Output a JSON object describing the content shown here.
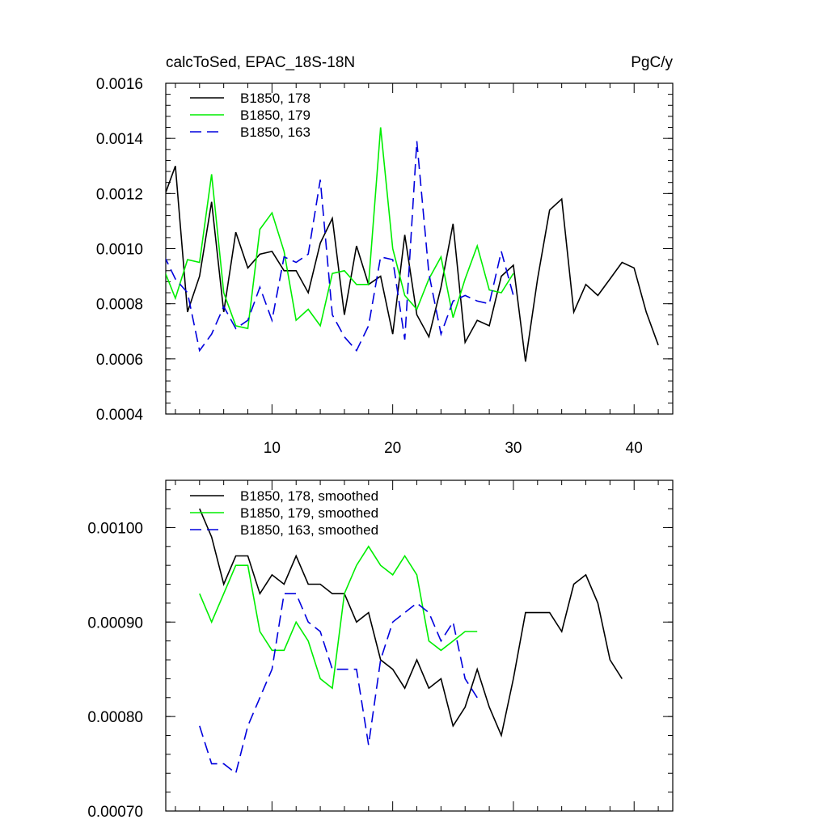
{
  "chart_data": [
    {
      "type": "line",
      "title_left": "calcToSed, EPAC_18S-18N",
      "title_right": "PgC/y",
      "xlabel": "",
      "ylabel": "",
      "xlim": [
        1.2,
        43.2
      ],
      "ylim": [
        0.0004,
        0.0016
      ],
      "x_ticks": [
        10,
        20,
        30,
        40
      ],
      "x_tick_labels": [
        "10",
        "20",
        "30",
        "40"
      ],
      "y_ticks": [
        0.0004,
        0.0006,
        0.0008,
        0.001,
        0.0012,
        0.0014,
        0.0016
      ],
      "y_tick_labels": [
        "0.0004",
        "0.0006",
        "0.0008",
        "0.0010",
        "0.0012",
        "0.0014",
        "0.0016"
      ],
      "grid": false,
      "legend_position": "top-left",
      "series": [
        {
          "name": "B1850, 178",
          "color": "#000000",
          "dash": "solid",
          "x": [
            1,
            2,
            3,
            4,
            5,
            6,
            7,
            8,
            9,
            10,
            11,
            12,
            13,
            14,
            15,
            16,
            17,
            18,
            19,
            20,
            21,
            22,
            23,
            24,
            25,
            26,
            27,
            28,
            29,
            30,
            31,
            32,
            33,
            34,
            35,
            36,
            37,
            38,
            39,
            40,
            41,
            42
          ],
          "y": [
            0.00118,
            0.0013,
            0.00077,
            0.0009,
            0.00117,
            0.00077,
            0.00106,
            0.00093,
            0.00098,
            0.00099,
            0.00092,
            0.00092,
            0.00084,
            0.00102,
            0.00111,
            0.00076,
            0.00101,
            0.00087,
            0.0009,
            0.00069,
            0.00105,
            0.00076,
            0.00068,
            0.00086,
            0.00109,
            0.00066,
            0.00074,
            0.00072,
            0.0009,
            0.00094,
            0.00059,
            0.00089,
            0.00114,
            0.00118,
            0.00077,
            0.00087,
            0.00083,
            0.00089,
            0.00095,
            0.00093,
            0.00077,
            0.00065
          ]
        },
        {
          "name": "B1850, 179",
          "color": "#00ee00",
          "dash": "solid",
          "x": [
            1,
            2,
            3,
            4,
            5,
            6,
            7,
            8,
            9,
            10,
            11,
            12,
            13,
            14,
            15,
            16,
            17,
            18,
            19,
            20,
            21,
            22,
            23,
            24,
            25,
            26,
            27,
            28,
            29,
            30
          ],
          "y": [
            0.00093,
            0.00082,
            0.00096,
            0.00095,
            0.00127,
            0.00084,
            0.00072,
            0.00071,
            0.00107,
            0.00113,
            0.00099,
            0.00074,
            0.00078,
            0.00072,
            0.00091,
            0.00092,
            0.00087,
            0.00087,
            0.00144,
            0.001,
            0.00083,
            0.00078,
            0.00089,
            0.00097,
            0.00075,
            0.00089,
            0.00101,
            0.00085,
            0.00084,
            0.00091
          ]
        },
        {
          "name": "B1850, 163",
          "color": "#0000dd",
          "dash": "dashed",
          "x": [
            1,
            2,
            3,
            4,
            5,
            6,
            7,
            8,
            9,
            10,
            11,
            12,
            13,
            14,
            15,
            16,
            17,
            18,
            19,
            20,
            21,
            22,
            23,
            24,
            25,
            26,
            27,
            28,
            29,
            30
          ],
          "y": [
            0.00098,
            0.00089,
            0.00084,
            0.00063,
            0.00069,
            0.00079,
            0.00071,
            0.00074,
            0.00086,
            0.00074,
            0.00097,
            0.00095,
            0.00098,
            0.00125,
            0.00076,
            0.00068,
            0.00063,
            0.00072,
            0.00097,
            0.00096,
            0.00067,
            0.00139,
            0.00091,
            0.00069,
            0.00081,
            0.00083,
            0.00081,
            0.0008,
            0.00099,
            0.00083
          ]
        }
      ]
    },
    {
      "type": "line",
      "title_left": "",
      "title_right": "",
      "xlabel": "",
      "ylabel": "",
      "xlim": [
        1.2,
        43.2
      ],
      "ylim": [
        0.0007,
        0.00105
      ],
      "x_ticks": [
        10,
        20,
        30,
        40
      ],
      "x_tick_labels": [],
      "y_ticks": [
        0.0007,
        0.0008,
        0.0009,
        0.001
      ],
      "y_tick_labels": [
        "0.00070",
        "0.00080",
        "0.00090",
        "0.00100"
      ],
      "grid": false,
      "legend_position": "top-left",
      "series": [
        {
          "name": "B1850, 178, smoothed",
          "color": "#000000",
          "dash": "solid",
          "x": [
            4,
            5,
            6,
            7,
            8,
            9,
            10,
            11,
            12,
            13,
            14,
            15,
            16,
            17,
            18,
            19,
            20,
            21,
            22,
            23,
            24,
            25,
            26,
            27,
            28,
            29,
            30,
            31,
            32,
            33,
            34,
            35,
            36,
            37,
            38,
            39
          ],
          "y": [
            0.00102,
            0.00099,
            0.00094,
            0.00097,
            0.00097,
            0.00093,
            0.00095,
            0.00094,
            0.00097,
            0.00094,
            0.00094,
            0.00093,
            0.00093,
            0.0009,
            0.00091,
            0.00086,
            0.00085,
            0.00083,
            0.00086,
            0.00083,
            0.00084,
            0.00079,
            0.00081,
            0.00085,
            0.00081,
            0.00078,
            0.00084,
            0.00091,
            0.00091,
            0.00091,
            0.00089,
            0.00094,
            0.00095,
            0.00092,
            0.00086,
            0.00084
          ]
        },
        {
          "name": "B1850, 179, smoothed",
          "color": "#00ee00",
          "dash": "solid",
          "x": [
            4,
            5,
            6,
            7,
            8,
            9,
            10,
            11,
            12,
            13,
            14,
            15,
            16,
            17,
            18,
            19,
            20,
            21,
            22,
            23,
            24,
            25,
            26,
            27
          ],
          "y": [
            0.00093,
            0.0009,
            0.00093,
            0.00096,
            0.00096,
            0.00089,
            0.00087,
            0.00087,
            0.0009,
            0.00088,
            0.00084,
            0.00083,
            0.00093,
            0.00096,
            0.00098,
            0.00096,
            0.00095,
            0.00097,
            0.00095,
            0.00088,
            0.00087,
            0.00088,
            0.00089,
            0.00089
          ]
        },
        {
          "name": "B1850, 163, smoothed",
          "color": "#0000dd",
          "dash": "dashed",
          "x": [
            4,
            5,
            6,
            7,
            8,
            9,
            10,
            11,
            12,
            13,
            14,
            15,
            16,
            17,
            18,
            19,
            20,
            21,
            22,
            23,
            24,
            25,
            26,
            27
          ],
          "y": [
            0.00079,
            0.00075,
            0.00075,
            0.00074,
            0.00079,
            0.00082,
            0.00085,
            0.00093,
            0.00093,
            0.0009,
            0.00089,
            0.00085,
            0.00085,
            0.00085,
            0.00077,
            0.00086,
            0.0009,
            0.00091,
            0.00092,
            0.00091,
            0.00088,
            0.0009,
            0.00084,
            0.00082
          ]
        }
      ]
    }
  ]
}
